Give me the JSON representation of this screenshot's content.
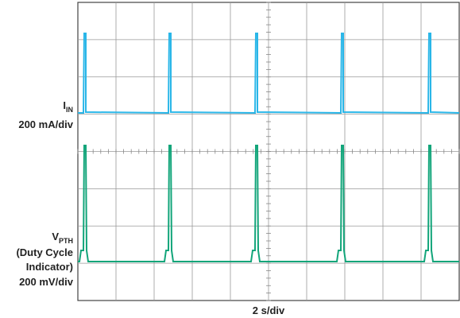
{
  "channels": [
    {
      "symbol": "I",
      "subscript": "IN",
      "scale": "200 mA/div"
    },
    {
      "symbol": "V",
      "subscript": "PTH",
      "notes": [
        "(Duty Cycle",
        "Indicator)"
      ],
      "scale": "200 mV/div"
    }
  ],
  "timebase": "2 s/div"
}
